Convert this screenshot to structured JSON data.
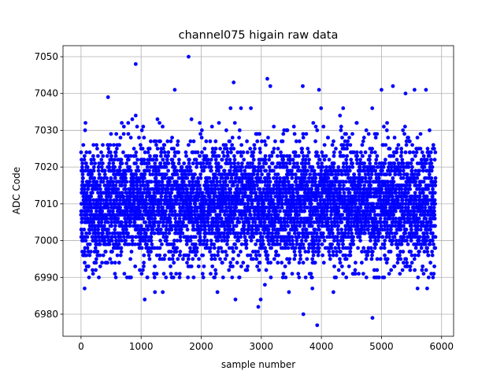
{
  "chart_data": {
    "type": "scatter",
    "title": "channel075 higain raw data",
    "xlabel": "sample number",
    "ylabel": "ADC Code",
    "xlim": [
      -300,
      6200
    ],
    "ylim": [
      6974,
      7053
    ],
    "xticks": [
      0,
      1000,
      2000,
      3000,
      4000,
      5000,
      6000
    ],
    "xtick_labels": [
      "0",
      "1000",
      "2000",
      "3000",
      "4000",
      "5000",
      "6000"
    ],
    "yticks": [
      6980,
      6990,
      7000,
      7010,
      7020,
      7030,
      7040,
      7050
    ],
    "ytick_labels": [
      "6980",
      "6990",
      "7000",
      "7010",
      "7020",
      "7030",
      "7040",
      "7050"
    ],
    "grid": true,
    "marker_color": "#0000ff",
    "sample_count": 5900,
    "y_distribution": {
      "center": 7010,
      "spread": 8
    },
    "outliers": [
      {
        "x": 910,
        "y": 7048
      },
      {
        "x": 1790,
        "y": 7050
      },
      {
        "x": 2540,
        "y": 7043
      },
      {
        "x": 3100,
        "y": 7044
      },
      {
        "x": 3150,
        "y": 7042
      },
      {
        "x": 3690,
        "y": 7042
      },
      {
        "x": 3960,
        "y": 7041
      },
      {
        "x": 1560,
        "y": 7041
      },
      {
        "x": 5000,
        "y": 7041
      },
      {
        "x": 5190,
        "y": 7042
      },
      {
        "x": 5550,
        "y": 7041
      },
      {
        "x": 5740,
        "y": 7041
      },
      {
        "x": 450,
        "y": 7039
      },
      {
        "x": 5400,
        "y": 7040
      },
      {
        "x": 3700,
        "y": 6980
      },
      {
        "x": 3930,
        "y": 6977
      },
      {
        "x": 4850,
        "y": 6979
      },
      {
        "x": 2950,
        "y": 6982
      },
      {
        "x": 2990,
        "y": 6984
      },
      {
        "x": 2570,
        "y": 6984
      },
      {
        "x": 1060,
        "y": 6984
      },
      {
        "x": 60,
        "y": 6987
      },
      {
        "x": 3460,
        "y": 6986
      },
      {
        "x": 4200,
        "y": 6986
      },
      {
        "x": 1230,
        "y": 6986
      },
      {
        "x": 1360,
        "y": 6986
      },
      {
        "x": 2270,
        "y": 6986
      },
      {
        "x": 5600,
        "y": 6987
      },
      {
        "x": 5760,
        "y": 6987
      },
      {
        "x": 5870,
        "y": 6991
      },
      {
        "x": 3060,
        "y": 6988
      },
      {
        "x": 3850,
        "y": 6987
      }
    ]
  }
}
